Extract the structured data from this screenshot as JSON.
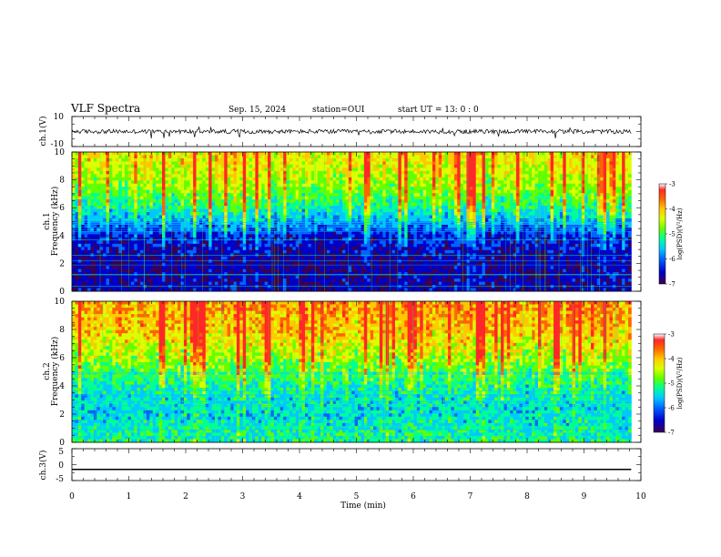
{
  "header": {
    "title": "VLF Spectra",
    "date": "Sep. 15, 2024",
    "station": "station=OUI",
    "start": "start UT =  13: 0  : 0"
  },
  "colors": {
    "colormap": [
      "#3a0056",
      "#0000c8",
      "#0064ff",
      "#00c8ff",
      "#00ff96",
      "#64ff00",
      "#dcff00",
      "#ffc800",
      "#ff6400",
      "#ff2828",
      "#ffffff"
    ],
    "trace": "#000000"
  },
  "chart_data": [
    {
      "type": "line",
      "panel": "ch1-waveform",
      "ylabel": "ch.1(V)",
      "ylim": [
        -10,
        10
      ],
      "yticks": [
        "10",
        "-10"
      ],
      "xlim": [
        0,
        10
      ],
      "trace_range_V": [
        -2,
        2
      ],
      "trace_end_min": 9.83
    },
    {
      "type": "heatmap",
      "panel": "ch1-spectrogram",
      "ylabel": "ch.1\nFrequency (kHz)",
      "ylim": [
        0,
        10
      ],
      "yticks": [
        "0",
        "2",
        "4",
        "6",
        "8",
        "10"
      ],
      "xlim": [
        0,
        9.83
      ],
      "color_range": [
        -7,
        -3
      ],
      "colorbar_label": "log(PSD)(V²/Hz)",
      "colorbar_ticks": [
        "-3",
        "-4",
        "-5",
        "-6",
        "-7"
      ],
      "level_profile": [
        {
          "f_kHz": 0,
          "log_psd": -6.5
        },
        {
          "f_kHz": 2,
          "log_psd": -6.6
        },
        {
          "f_kHz": 4,
          "log_psd": -6.3
        },
        {
          "f_kHz": 6,
          "log_psd": -5.2
        },
        {
          "f_kHz": 8,
          "log_psd": -4.5
        },
        {
          "f_kHz": 10,
          "log_psd": -4.2
        }
      ]
    },
    {
      "type": "heatmap",
      "panel": "ch2-spectrogram",
      "ylabel": "ch.2\nFrequency (kHz)",
      "ylim": [
        0,
        10
      ],
      "yticks": [
        "0",
        "2",
        "4",
        "6",
        "8",
        "10"
      ],
      "xlim": [
        0,
        9.83
      ],
      "color_range": [
        -7,
        -3
      ],
      "colorbar_label": "log(PSD)(V²/Hz)",
      "colorbar_ticks": [
        "-3",
        "-4",
        "-5",
        "-6",
        "-7"
      ],
      "level_profile": [
        {
          "f_kHz": 0,
          "log_psd": -5.2
        },
        {
          "f_kHz": 2,
          "log_psd": -5.5
        },
        {
          "f_kHz": 4,
          "log_psd": -5.3
        },
        {
          "f_kHz": 6,
          "log_psd": -4.6
        },
        {
          "f_kHz": 8,
          "log_psd": -4.0
        },
        {
          "f_kHz": 10,
          "log_psd": -3.8
        }
      ]
    },
    {
      "type": "line",
      "panel": "ch3-waveform",
      "ylabel": "ch.3(V)",
      "ylim": [
        -5,
        5
      ],
      "yticks": [
        "5",
        "0",
        "-5"
      ],
      "xlim": [
        0,
        10
      ],
      "constant_value_V": -1.5,
      "trace_end_min": 9.83
    }
  ],
  "xaxis": {
    "label": "Time  (min)",
    "ticks": [
      "0",
      "1",
      "2",
      "3",
      "4",
      "5",
      "6",
      "7",
      "8",
      "9",
      "10"
    ],
    "range": [
      0,
      10
    ]
  }
}
